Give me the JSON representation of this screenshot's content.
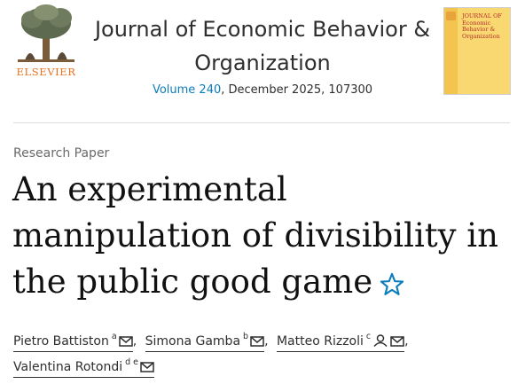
{
  "publisher": {
    "logo_text": "ELSEVIER"
  },
  "journal": {
    "title_line1": "Journal of Economic Behavior &",
    "title_line2": "Organization",
    "volume_link": "Volume 240",
    "issue_rest": ", December 2025, 107300"
  },
  "cover": {
    "line1": "JOURNAL OF",
    "line2": "Economic",
    "line3": "Behavior &",
    "line4": "Organization"
  },
  "article": {
    "type": "Research Paper",
    "title_line1": "An experimental",
    "title_line2": "manipulation of divisibility in",
    "title_line3": "the public good game"
  },
  "authors": [
    {
      "name": "Pietro Battiston",
      "sup": "a"
    },
    {
      "name": "Simona Gamba",
      "sup": "b"
    },
    {
      "name": "Matteo Rizzoli",
      "sup": "c"
    },
    {
      "name": "Valentina Rotondi",
      "sup": "d e"
    }
  ],
  "colors": {
    "link": "#0c7dbb",
    "elsevier_orange": "#e9711c",
    "star": "#0c7dbb"
  },
  "icons": [
    "elsevier-tree-logo",
    "journal-cover",
    "star-icon",
    "envelope-icon",
    "person-icon"
  ]
}
